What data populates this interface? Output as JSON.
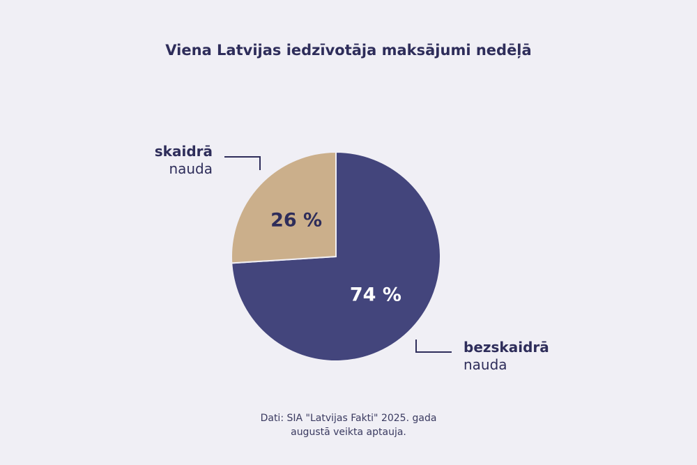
{
  "chart_data": {
    "type": "pie",
    "title": "Viena Latvijas iedzīvotāja maksājumi nedēļā",
    "slices": [
      {
        "label_bold": "bezskaidrā",
        "label_light": "nauda",
        "value": 74,
        "value_label": "74 %",
        "color": "#43457c",
        "text_color": "#ffffff"
      },
      {
        "label_bold": "skaidrā",
        "label_light": "nauda",
        "value": 26,
        "value_label": "26 %",
        "color": "#cbaf8b",
        "text_color": "#2e2d5a"
      }
    ],
    "legend": "callouts"
  },
  "source": {
    "line1": "Dati: SIA \"Latvijas Fakti\" 2025. gada",
    "line2": "augustā veikta aptauja."
  }
}
